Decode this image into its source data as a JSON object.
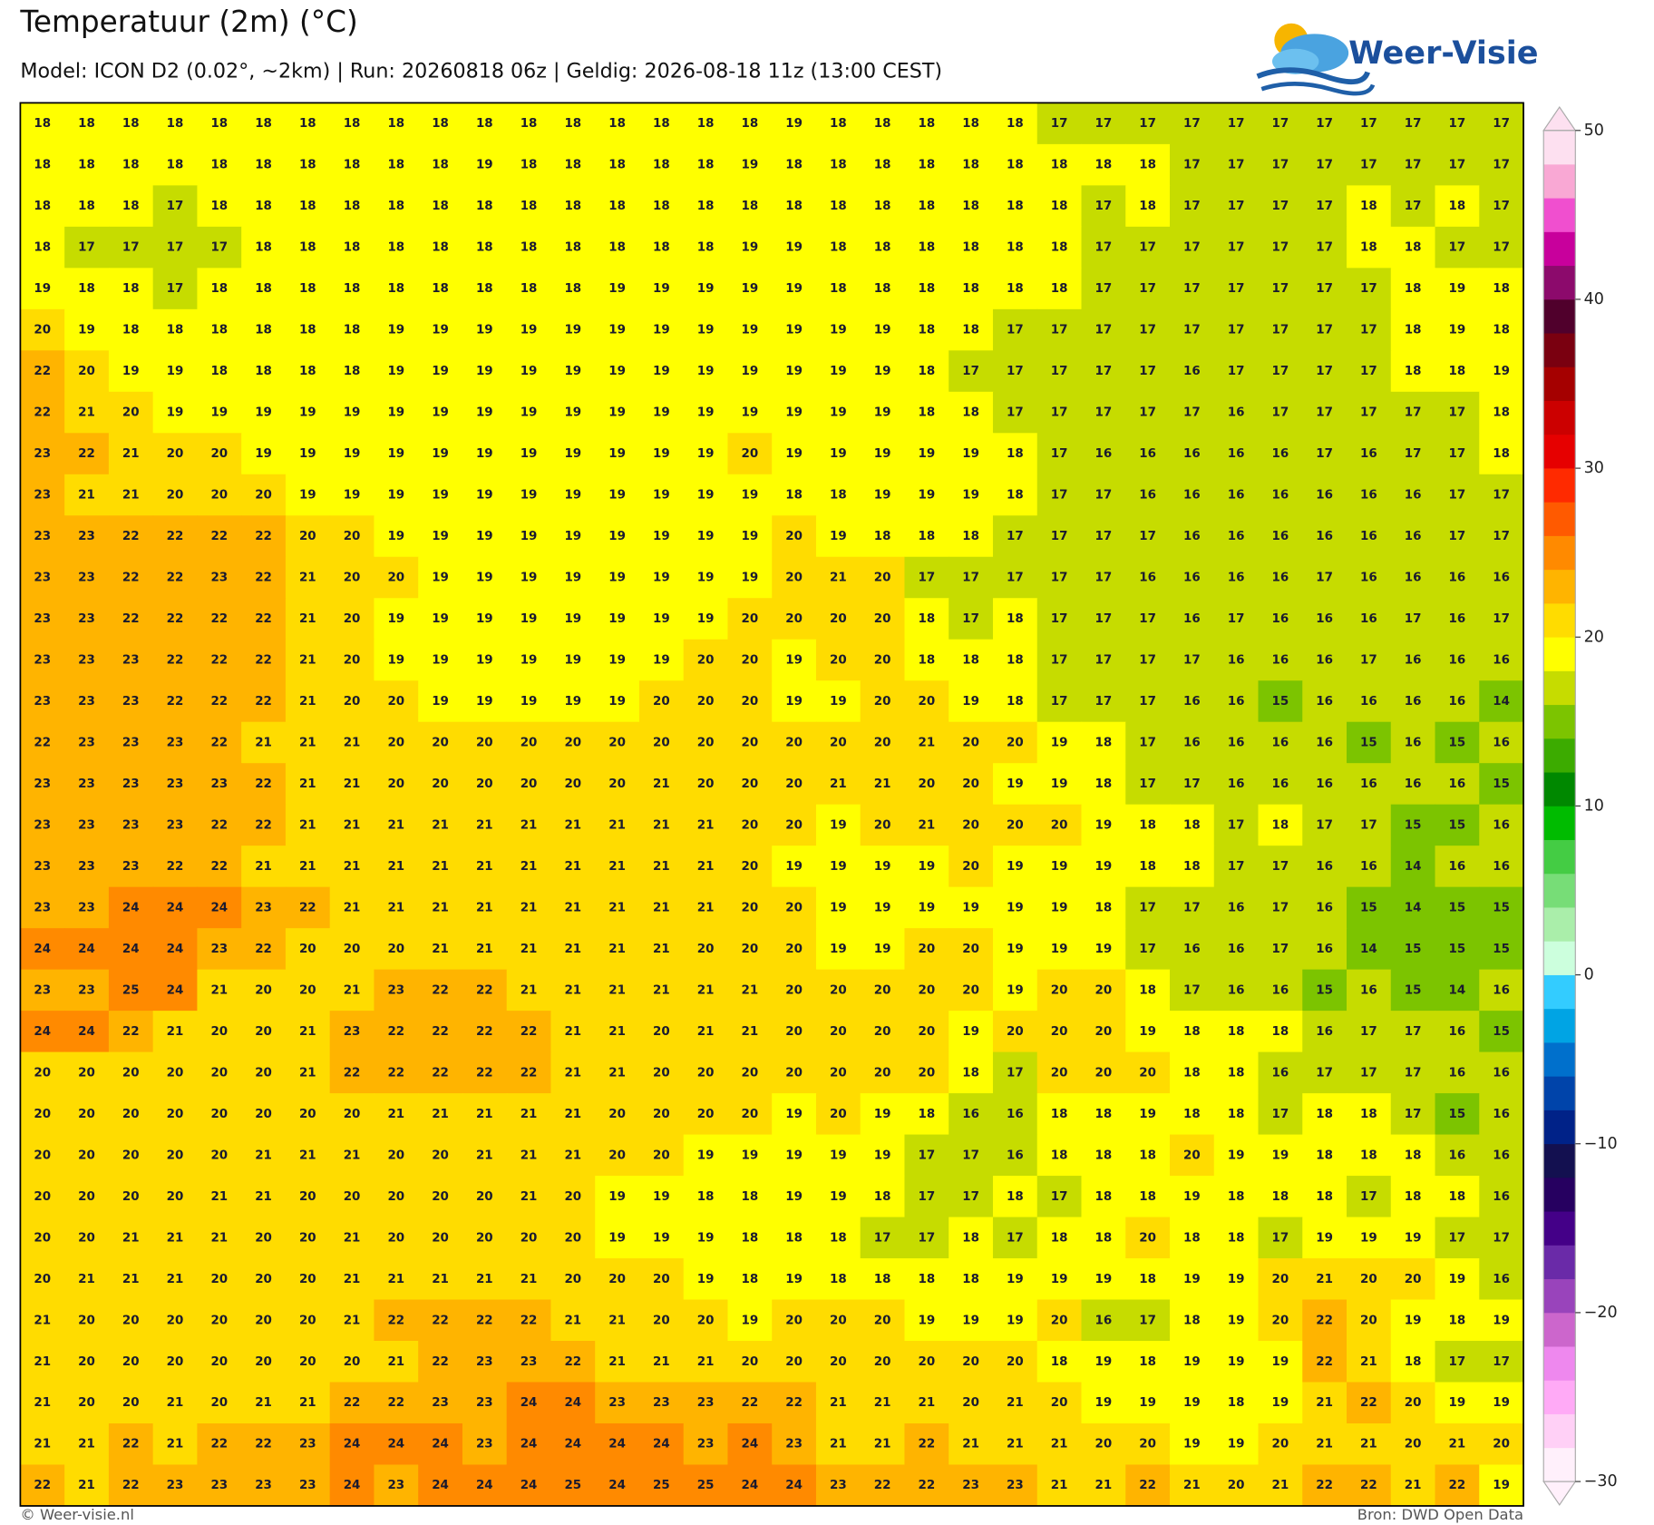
{
  "header": {
    "title": "Temperatuur (2m) (°C)",
    "subtitle": "Model: ICON D2 (0.02°, ~2km)  |  Run: 20260818 06z  |  Geldig: 2026-08-18 11z (13:00 CEST)"
  },
  "logo": "Weer-Visie",
  "grid": {
    "rows": [
      [
        18,
        18,
        18,
        18,
        18,
        18,
        18,
        18,
        18,
        18,
        18,
        18,
        18,
        18,
        18,
        18,
        18,
        19,
        18,
        18,
        18,
        18,
        18,
        17,
        17,
        17,
        17,
        17,
        17,
        17,
        17,
        17,
        17,
        17
      ],
      [
        18,
        18,
        18,
        18,
        18,
        18,
        18,
        18,
        18,
        18,
        19,
        18,
        18,
        18,
        18,
        18,
        19,
        18,
        18,
        18,
        18,
        18,
        18,
        18,
        18,
        18,
        17,
        17,
        17,
        17,
        17,
        17,
        17,
        17
      ],
      [
        18,
        18,
        18,
        17,
        18,
        18,
        18,
        18,
        18,
        18,
        18,
        18,
        18,
        18,
        18,
        18,
        18,
        18,
        18,
        18,
        18,
        18,
        18,
        18,
        17,
        18,
        17,
        17,
        17,
        17,
        18,
        17,
        18,
        17
      ],
      [
        18,
        17,
        17,
        17,
        17,
        18,
        18,
        18,
        18,
        18,
        18,
        18,
        18,
        18,
        18,
        18,
        19,
        19,
        18,
        18,
        18,
        18,
        18,
        18,
        17,
        17,
        17,
        17,
        17,
        17,
        18,
        18,
        17,
        17
      ],
      [
        19,
        18,
        18,
        17,
        18,
        18,
        18,
        18,
        18,
        18,
        18,
        18,
        18,
        19,
        19,
        19,
        19,
        19,
        18,
        18,
        18,
        18,
        18,
        18,
        17,
        17,
        17,
        17,
        17,
        17,
        17,
        18,
        19,
        18
      ],
      [
        20,
        19,
        18,
        18,
        18,
        18,
        18,
        18,
        19,
        19,
        19,
        19,
        19,
        19,
        19,
        19,
        19,
        19,
        19,
        19,
        18,
        18,
        17,
        17,
        17,
        17,
        17,
        17,
        17,
        17,
        17,
        18,
        19,
        18
      ],
      [
        22,
        20,
        19,
        19,
        18,
        18,
        18,
        18,
        19,
        19,
        19,
        19,
        19,
        19,
        19,
        19,
        19,
        19,
        19,
        19,
        18,
        17,
        17,
        17,
        17,
        17,
        16,
        17,
        17,
        17,
        17,
        18,
        18,
        19
      ],
      [
        22,
        21,
        20,
        19,
        19,
        19,
        19,
        19,
        19,
        19,
        19,
        19,
        19,
        19,
        19,
        19,
        19,
        19,
        19,
        19,
        18,
        18,
        17,
        17,
        17,
        17,
        17,
        16,
        17,
        17,
        17,
        17,
        17,
        18
      ],
      [
        23,
        22,
        21,
        20,
        20,
        19,
        19,
        19,
        19,
        19,
        19,
        19,
        19,
        19,
        19,
        19,
        20,
        19,
        19,
        19,
        19,
        19,
        18,
        17,
        16,
        16,
        16,
        16,
        16,
        17,
        16,
        17,
        17,
        18
      ],
      [
        23,
        21,
        21,
        20,
        20,
        20,
        19,
        19,
        19,
        19,
        19,
        19,
        19,
        19,
        19,
        19,
        19,
        18,
        18,
        19,
        19,
        19,
        18,
        17,
        17,
        16,
        16,
        16,
        16,
        16,
        16,
        16,
        17,
        17
      ],
      [
        23,
        23,
        22,
        22,
        22,
        22,
        20,
        20,
        19,
        19,
        19,
        19,
        19,
        19,
        19,
        19,
        19,
        20,
        19,
        18,
        18,
        18,
        17,
        17,
        17,
        17,
        16,
        16,
        16,
        16,
        16,
        16,
        17,
        17
      ],
      [
        23,
        23,
        22,
        22,
        23,
        22,
        21,
        20,
        20,
        19,
        19,
        19,
        19,
        19,
        19,
        19,
        19,
        20,
        21,
        20,
        17,
        17,
        17,
        17,
        17,
        16,
        16,
        16,
        16,
        17,
        16,
        16,
        16,
        16
      ],
      [
        23,
        23,
        22,
        22,
        22,
        22,
        21,
        20,
        19,
        19,
        19,
        19,
        19,
        19,
        19,
        19,
        20,
        20,
        20,
        20,
        18,
        17,
        18,
        17,
        17,
        17,
        16,
        17,
        16,
        16,
        16,
        17,
        16,
        17
      ],
      [
        23,
        23,
        23,
        22,
        22,
        22,
        21,
        20,
        19,
        19,
        19,
        19,
        19,
        19,
        19,
        20,
        20,
        19,
        20,
        20,
        18,
        18,
        18,
        17,
        17,
        17,
        17,
        16,
        16,
        16,
        17,
        16,
        16,
        16
      ],
      [
        23,
        23,
        23,
        22,
        22,
        22,
        21,
        20,
        20,
        19,
        19,
        19,
        19,
        19,
        20,
        20,
        20,
        19,
        19,
        20,
        20,
        19,
        18,
        17,
        17,
        17,
        16,
        16,
        15,
        16,
        16,
        16,
        16,
        14
      ],
      [
        22,
        23,
        23,
        23,
        22,
        21,
        21,
        21,
        20,
        20,
        20,
        20,
        20,
        20,
        20,
        20,
        20,
        20,
        20,
        20,
        21,
        20,
        20,
        19,
        18,
        17,
        16,
        16,
        16,
        16,
        15,
        16,
        15,
        16
      ],
      [
        23,
        23,
        23,
        23,
        23,
        22,
        21,
        21,
        20,
        20,
        20,
        20,
        20,
        20,
        21,
        20,
        20,
        20,
        21,
        21,
        20,
        20,
        19,
        19,
        18,
        17,
        17,
        16,
        16,
        16,
        16,
        16,
        16,
        15
      ],
      [
        23,
        23,
        23,
        23,
        22,
        22,
        21,
        21,
        21,
        21,
        21,
        21,
        21,
        21,
        21,
        21,
        20,
        20,
        19,
        20,
        21,
        20,
        20,
        20,
        19,
        18,
        18,
        17,
        18,
        17,
        17,
        15,
        15,
        16
      ],
      [
        23,
        23,
        23,
        22,
        22,
        21,
        21,
        21,
        21,
        21,
        21,
        21,
        21,
        21,
        21,
        21,
        20,
        19,
        19,
        19,
        19,
        20,
        19,
        19,
        19,
        18,
        18,
        17,
        17,
        16,
        16,
        14,
        16,
        16
      ],
      [
        23,
        23,
        24,
        24,
        24,
        23,
        22,
        21,
        21,
        21,
        21,
        21,
        21,
        21,
        21,
        21,
        20,
        20,
        19,
        19,
        19,
        19,
        19,
        19,
        18,
        17,
        17,
        16,
        17,
        16,
        15,
        14,
        15,
        15
      ],
      [
        24,
        24,
        24,
        24,
        23,
        22,
        20,
        20,
        20,
        21,
        21,
        21,
        21,
        21,
        21,
        20,
        20,
        20,
        19,
        19,
        20,
        20,
        19,
        19,
        19,
        17,
        16,
        16,
        17,
        16,
        14,
        15,
        15,
        15
      ],
      [
        23,
        23,
        25,
        24,
        21,
        20,
        20,
        21,
        23,
        22,
        22,
        21,
        21,
        21,
        21,
        21,
        21,
        20,
        20,
        20,
        20,
        20,
        19,
        20,
        20,
        18,
        17,
        16,
        16,
        15,
        16,
        15,
        14,
        16
      ],
      [
        24,
        24,
        22,
        21,
        20,
        20,
        21,
        23,
        22,
        22,
        22,
        22,
        21,
        21,
        20,
        21,
        21,
        20,
        20,
        20,
        20,
        19,
        20,
        20,
        20,
        19,
        18,
        18,
        18,
        16,
        17,
        17,
        16,
        15
      ],
      [
        20,
        20,
        20,
        20,
        20,
        20,
        21,
        22,
        22,
        22,
        22,
        22,
        21,
        21,
        20,
        20,
        20,
        20,
        20,
        20,
        20,
        18,
        17,
        20,
        20,
        20,
        18,
        18,
        16,
        17,
        17,
        17,
        16,
        16
      ],
      [
        20,
        20,
        20,
        20,
        20,
        20,
        20,
        20,
        21,
        21,
        21,
        21,
        21,
        20,
        20,
        20,
        20,
        19,
        20,
        19,
        18,
        16,
        16,
        18,
        18,
        19,
        18,
        18,
        17,
        18,
        18,
        17,
        15,
        16
      ],
      [
        20,
        20,
        20,
        20,
        20,
        21,
        21,
        21,
        20,
        20,
        21,
        21,
        21,
        20,
        20,
        19,
        19,
        19,
        19,
        19,
        17,
        17,
        16,
        18,
        18,
        18,
        20,
        19,
        19,
        18,
        18,
        18,
        16,
        16
      ],
      [
        20,
        20,
        20,
        20,
        21,
        21,
        20,
        20,
        20,
        20,
        20,
        21,
        20,
        19,
        19,
        18,
        18,
        19,
        19,
        18,
        17,
        17,
        18,
        17,
        18,
        18,
        19,
        18,
        18,
        18,
        17,
        18,
        18,
        16
      ],
      [
        20,
        20,
        21,
        21,
        21,
        20,
        20,
        21,
        20,
        20,
        20,
        20,
        20,
        19,
        19,
        19,
        18,
        18,
        18,
        17,
        17,
        18,
        17,
        18,
        18,
        20,
        18,
        18,
        17,
        19,
        19,
        19,
        17,
        17
      ],
      [
        20,
        21,
        21,
        21,
        20,
        20,
        20,
        21,
        21,
        21,
        21,
        21,
        20,
        20,
        20,
        19,
        18,
        19,
        18,
        18,
        18,
        18,
        19,
        19,
        19,
        18,
        19,
        19,
        20,
        21,
        20,
        20,
        19,
        16
      ],
      [
        21,
        20,
        20,
        20,
        20,
        20,
        20,
        21,
        22,
        22,
        22,
        22,
        21,
        21,
        20,
        20,
        19,
        20,
        20,
        20,
        19,
        19,
        19,
        20,
        16,
        17,
        18,
        19,
        20,
        22,
        20,
        19,
        18,
        19
      ],
      [
        21,
        20,
        20,
        20,
        20,
        20,
        20,
        20,
        21,
        22,
        23,
        23,
        22,
        21,
        21,
        21,
        20,
        20,
        20,
        20,
        20,
        20,
        20,
        18,
        19,
        18,
        19,
        19,
        19,
        22,
        21,
        18,
        17,
        17
      ],
      [
        21,
        20,
        20,
        21,
        20,
        21,
        21,
        22,
        22,
        23,
        23,
        24,
        24,
        23,
        23,
        23,
        22,
        22,
        21,
        21,
        21,
        20,
        21,
        20,
        19,
        19,
        19,
        18,
        19,
        21,
        22,
        20,
        19,
        19
      ],
      [
        21,
        21,
        22,
        21,
        22,
        22,
        23,
        24,
        24,
        24,
        23,
        24,
        24,
        24,
        24,
        23,
        24,
        23,
        21,
        21,
        22,
        21,
        21,
        21,
        20,
        20,
        19,
        19,
        20,
        21,
        21,
        20,
        21,
        20
      ],
      [
        22,
        21,
        22,
        23,
        23,
        23,
        23,
        24,
        23,
        24,
        24,
        24,
        25,
        24,
        25,
        25,
        24,
        24,
        23,
        22,
        22,
        23,
        23,
        21,
        21,
        22,
        21,
        20,
        21,
        22,
        22,
        21,
        22,
        19
      ]
    ]
  },
  "colorbar": {
    "lim": [
      -30,
      50
    ],
    "ticks": [
      {
        "value": -30,
        "label": "−30"
      },
      {
        "value": -20,
        "label": "−20"
      },
      {
        "value": -10,
        "label": "−10"
      },
      0,
      10,
      20,
      30,
      40,
      50
    ],
    "colors": [
      "#fff0fb",
      "#ffd0f6",
      "#ffaaf6",
      "#ee88ee",
      "#cc66cc",
      "#9944bb",
      "#6a2aa8",
      "#440088",
      "#260060",
      "#131050",
      "#002288",
      "#0044aa",
      "#0070cc",
      "#00a4e4",
      "#33ccff",
      "#ccffdd",
      "#aaeeaa",
      "#77dd77",
      "#44cc44",
      "#00bb00",
      "#008800",
      "#3cab00",
      "#7cc400",
      "#c6dc00",
      "#ffff00",
      "#ffdc00",
      "#ffb400",
      "#ff8a00",
      "#ff5a00",
      "#ff2a00",
      "#e60000",
      "#cc0000",
      "#a50000",
      "#7a0010",
      "#50002c",
      "#8c0a6c",
      "#c8009c",
      "#f04fcf",
      "#f9a8d4",
      "#fde0f0"
    ]
  },
  "footer": {
    "credit": "© Weer-visie.nl",
    "source": "Bron: DWD Open Data"
  }
}
